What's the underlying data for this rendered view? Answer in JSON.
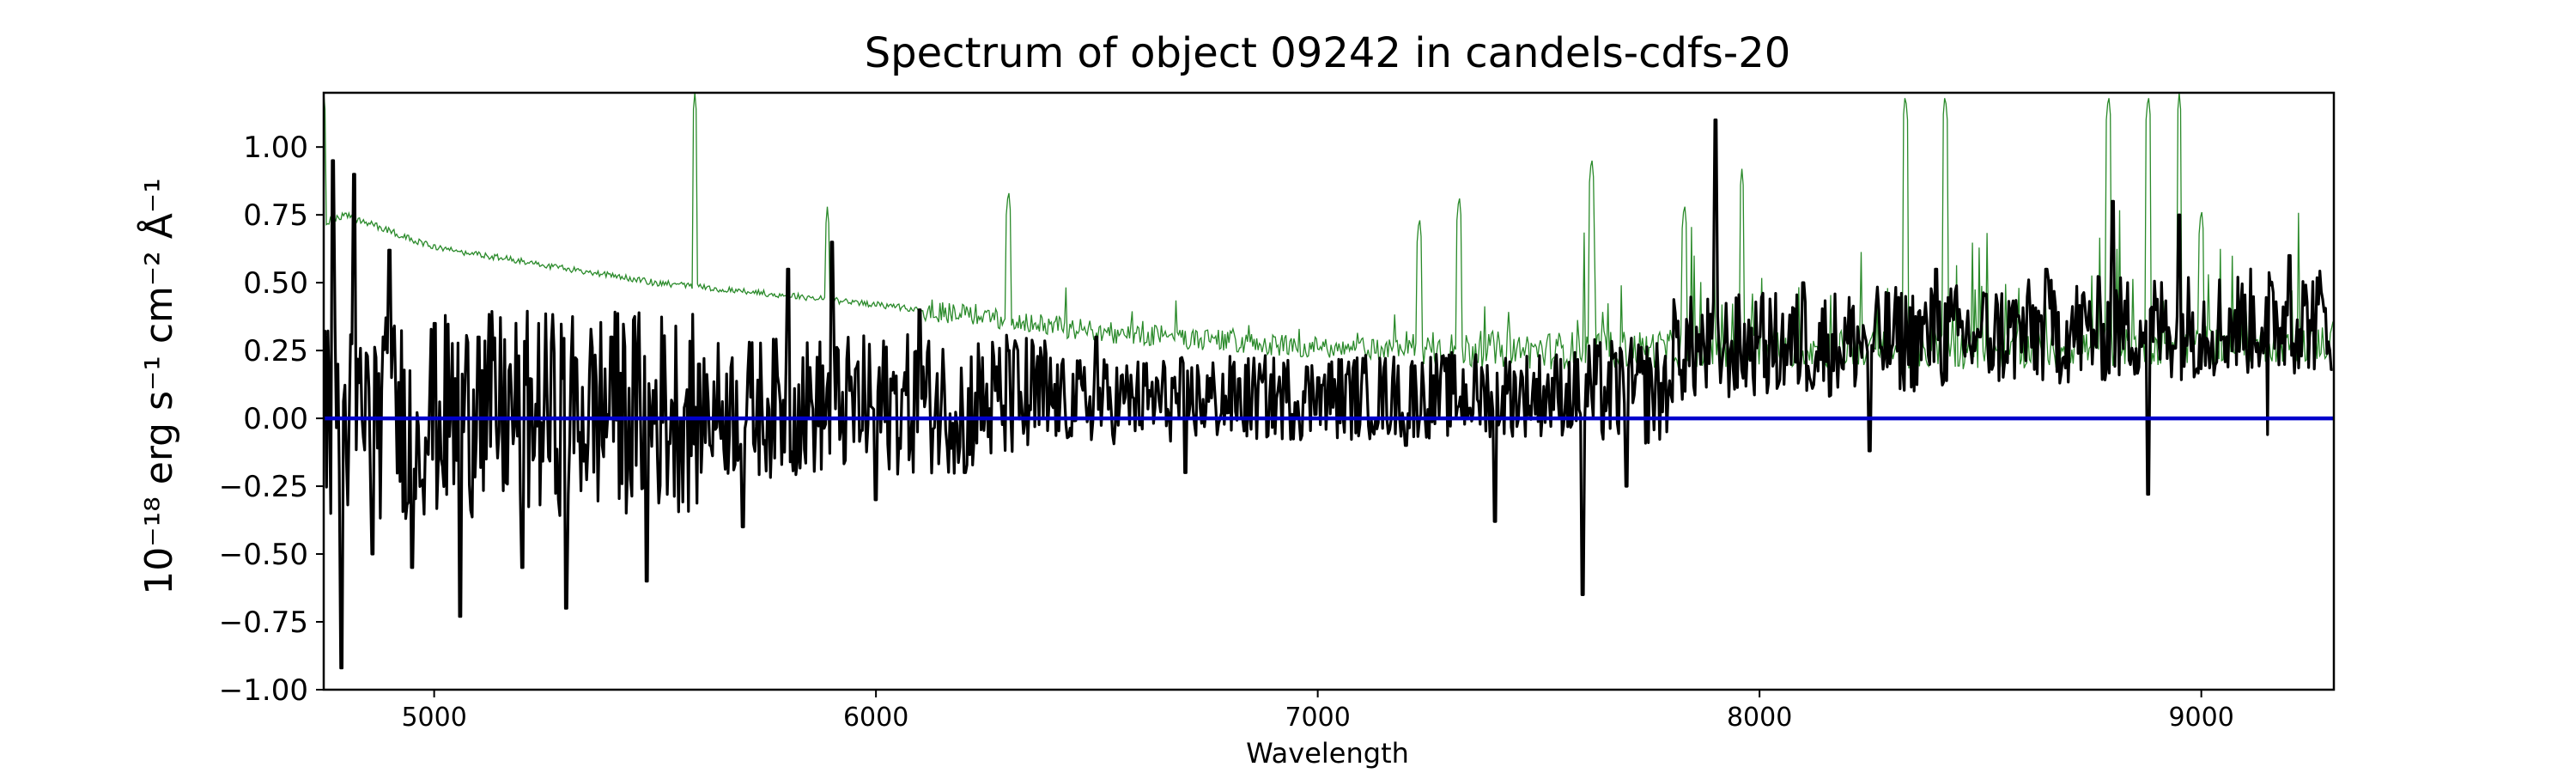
{
  "chart_data": {
    "type": "line",
    "title": "Spectrum of object 09242 in candels-cdfs-20",
    "xlabel": "Wavelength",
    "ylabel": "10⁻¹⁸ erg s⁻¹ cm⁻² Å⁻¹",
    "xlim": [
      4750,
      9300
    ],
    "ylim": [
      -1.0,
      1.2
    ],
    "xticks": [
      5000,
      6000,
      7000,
      8000,
      9000
    ],
    "yticks": [
      -1.0,
      -0.75,
      -0.5,
      -0.25,
      0.0,
      0.25,
      0.5,
      0.75,
      1.0
    ],
    "ytick_labels": [
      "−1.00",
      "−0.75",
      "−0.50",
      "−0.25",
      "0.00",
      "0.25",
      "0.50",
      "0.75",
      "1.00"
    ],
    "grid": false,
    "series": [
      {
        "role": "noise",
        "color": "#2a8a2a",
        "continuum": [
          [
            4750,
            0.72
          ],
          [
            4800,
            0.75
          ],
          [
            5000,
            0.63
          ],
          [
            5500,
            0.5
          ],
          [
            6000,
            0.42
          ],
          [
            6500,
            0.32
          ],
          [
            7000,
            0.26
          ],
          [
            7500,
            0.25
          ],
          [
            8000,
            0.26
          ],
          [
            8500,
            0.25
          ],
          [
            9000,
            0.27
          ],
          [
            9300,
            0.28
          ]
        ],
        "peaks": [
          [
            4750,
            1.2
          ],
          [
            5590,
            1.2
          ],
          [
            5890,
            0.78
          ],
          [
            6300,
            0.85
          ],
          [
            7230,
            0.75
          ],
          [
            7320,
            0.83
          ],
          [
            7620,
            0.97
          ],
          [
            7830,
            0.8
          ],
          [
            7960,
            0.92
          ],
          [
            8330,
            1.2
          ],
          [
            8420,
            1.2
          ],
          [
            8790,
            1.2
          ],
          [
            8880,
            1.2
          ],
          [
            8950,
            1.2
          ],
          [
            9000,
            0.78
          ]
        ]
      },
      {
        "role": "flux",
        "color": "#000000",
        "points": [
          [
            4750,
            0.3
          ],
          [
            4770,
            0.95
          ],
          [
            4790,
            -0.92
          ],
          [
            4820,
            0.9
          ],
          [
            4860,
            -0.5
          ],
          [
            4900,
            0.62
          ],
          [
            4950,
            -0.55
          ],
          [
            5000,
            0.35
          ],
          [
            5060,
            -0.73
          ],
          [
            5100,
            0.3
          ],
          [
            5200,
            -0.55
          ],
          [
            5300,
            -0.7
          ],
          [
            5400,
            0.3
          ],
          [
            5480,
            -0.6
          ],
          [
            5600,
            0.2
          ],
          [
            5700,
            -0.4
          ],
          [
            5800,
            0.55
          ],
          [
            5900,
            0.65
          ],
          [
            6000,
            -0.3
          ],
          [
            6100,
            0.4
          ],
          [
            6200,
            -0.2
          ],
          [
            6300,
            0.25
          ],
          [
            6500,
            0.3
          ],
          [
            6700,
            -0.2
          ],
          [
            7000,
            0.15
          ],
          [
            7200,
            -0.1
          ],
          [
            7400,
            -0.38
          ],
          [
            7600,
            -0.65
          ],
          [
            7700,
            -0.25
          ],
          [
            7900,
            1.1
          ],
          [
            8000,
            0.3
          ],
          [
            8100,
            0.5
          ],
          [
            8250,
            -0.12
          ],
          [
            8400,
            0.55
          ],
          [
            8500,
            0.3
          ],
          [
            8650,
            0.55
          ],
          [
            8800,
            0.8
          ],
          [
            8880,
            -0.28
          ],
          [
            8950,
            0.75
          ],
          [
            9050,
            0.3
          ],
          [
            9150,
            -0.06
          ],
          [
            9200,
            0.6
          ],
          [
            9300,
            0.18
          ]
        ]
      },
      {
        "role": "zero",
        "color": "#0000cc",
        "points": [
          [
            4750,
            0
          ],
          [
            9300,
            0
          ]
        ]
      }
    ]
  }
}
